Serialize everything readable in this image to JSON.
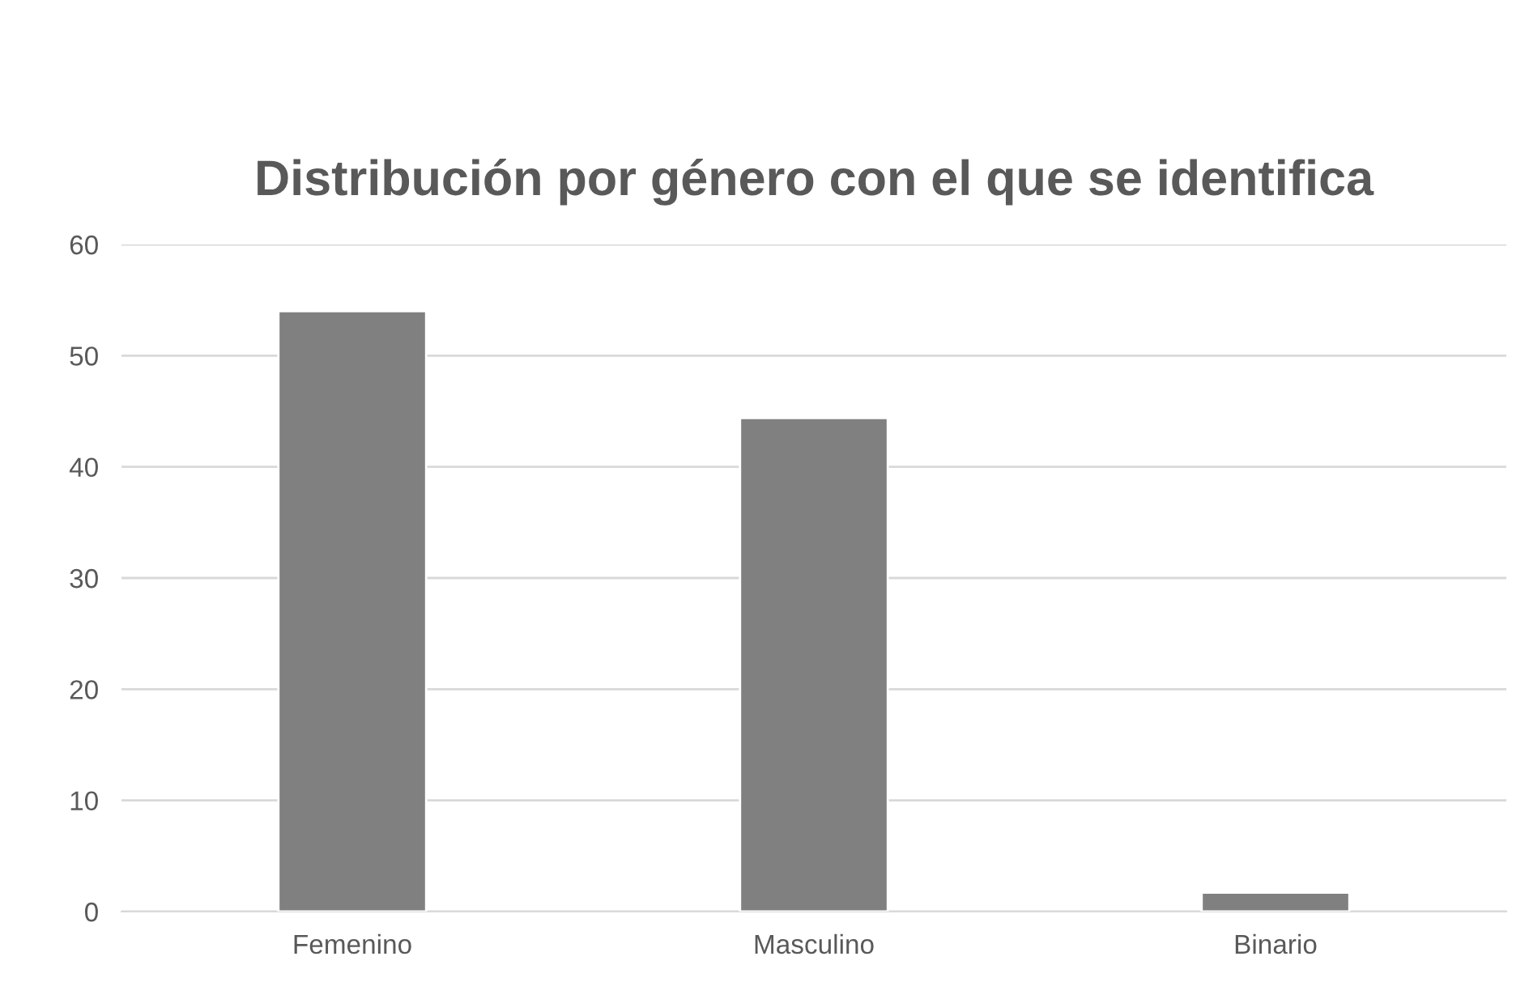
{
  "chart_data": {
    "type": "bar",
    "title": "Distribución por género con el que se identifica",
    "categories": [
      "Femenino",
      "Masculino",
      "Binario"
    ],
    "values": [
      54.0,
      44.4,
      1.7
    ],
    "color": "#808080",
    "ylim": [
      0,
      60
    ],
    "yticks": [
      0,
      10,
      20,
      30,
      40,
      50,
      60
    ],
    "grid": "y"
  }
}
